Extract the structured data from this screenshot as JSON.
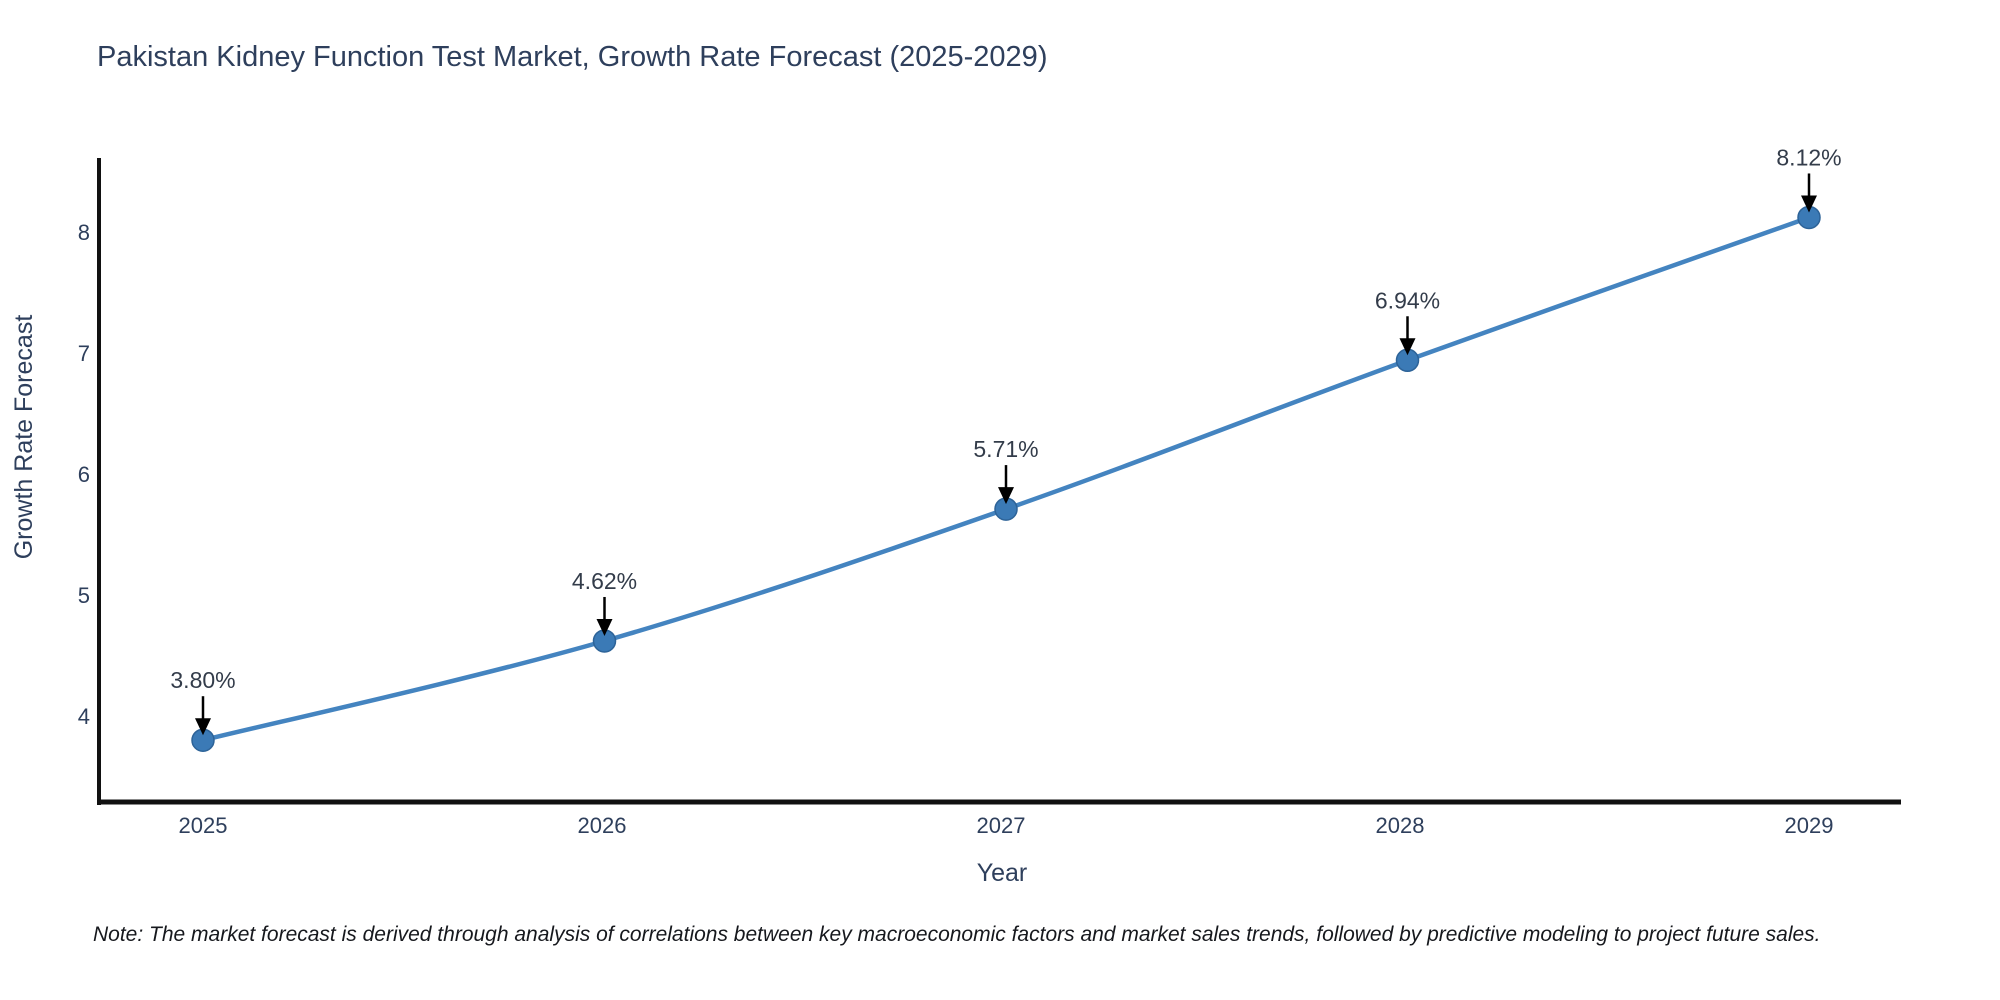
{
  "note": "Note: The market forecast is derived through analysis of correlations between key macroeconomic factors and market sales trends, followed by predictive modeling to project future sales.",
  "chart_data": {
    "type": "line",
    "title": "Pakistan Kidney Function Test Market, Growth Rate Forecast (2025-2029)",
    "xlabel": "Year",
    "ylabel": "Growth Rate Forecast",
    "categories": [
      "2025",
      "2026",
      "2027",
      "2028",
      "2029"
    ],
    "values": [
      3.8,
      4.62,
      5.71,
      6.94,
      8.12
    ],
    "point_labels": [
      "3.80%",
      "4.62%",
      "5.71%",
      "6.94%",
      "8.12%"
    ],
    "yticks": [
      4,
      5,
      6,
      7,
      8
    ],
    "ytick_labels": [
      "4",
      "5",
      "6",
      "7",
      "8"
    ],
    "ylim": [
      3.28,
      8.64
    ],
    "grid": false,
    "legend": "none",
    "annotations": "value labels with downward arrows above each point",
    "line_color": "#4484c0",
    "marker_color": "#3b7ab6",
    "marker_edge_color": "#2d6398",
    "axis_color": "#111111",
    "text_color": "#2e3f5c",
    "annotation_text_color": "#333c4a",
    "annotation_arrow_color": "#000000",
    "note_color": "#16181d"
  }
}
